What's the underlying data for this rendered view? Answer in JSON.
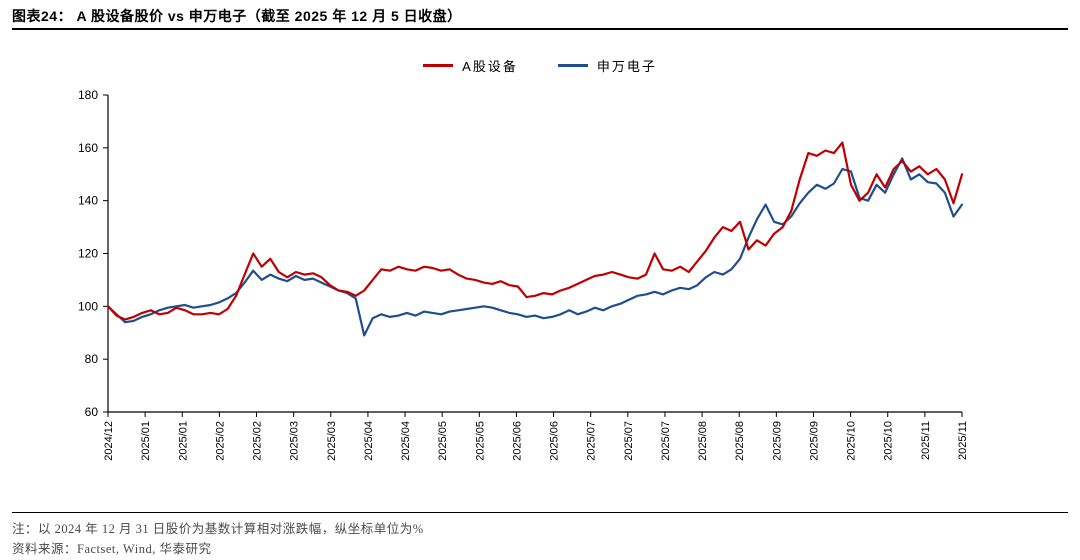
{
  "header": {
    "title": "图表24：  A 股设备股价 vs 申万电子（截至 2025 年 12 月 5 日收盘）"
  },
  "footer": {
    "note": "注：以 2024 年 12 月 31 日股价为基数计算相对涨跌幅，纵坐标单位为%",
    "source": "资料来源：Factset, Wind, 华泰研究"
  },
  "chart_data": {
    "type": "line",
    "title": "A股设备股价 vs 申万电子（截至2025年12月5日收盘）",
    "xlabel": "",
    "ylabel": "",
    "ylim": [
      60,
      180
    ],
    "yticks": [
      60,
      80,
      100,
      120,
      140,
      160,
      180
    ],
    "grid": false,
    "legend_position": "top-center",
    "x_tick_labels": [
      "2024/12",
      "2025/01",
      "2025/01",
      "2025/02",
      "2025/02",
      "2025/03",
      "2025/03",
      "2025/04",
      "2025/04",
      "2025/05",
      "2025/05",
      "2025/06",
      "2025/06",
      "2025/07",
      "2025/07",
      "2025/07",
      "2025/08",
      "2025/08",
      "2025/09",
      "2025/09",
      "2025/10",
      "2025/10",
      "2025/11",
      "2025/11"
    ],
    "series": [
      {
        "name": "A股设备",
        "color": "#C00000",
        "values": [
          100,
          96.5,
          95,
          96,
          97.5,
          98.5,
          97,
          97.5,
          99.5,
          98.5,
          97,
          97,
          97.5,
          97,
          99,
          104,
          112,
          120,
          115,
          118,
          113,
          111,
          113,
          112,
          112.5,
          111,
          108,
          106,
          105.5,
          104,
          106,
          110,
          114,
          113.5,
          115,
          114,
          113.5,
          115,
          114.5,
          113.5,
          114,
          112,
          110.5,
          110,
          109,
          108.5,
          109.5,
          108,
          107.5,
          103.5,
          104,
          105,
          104.5,
          106,
          107,
          108.5,
          110,
          111.5,
          112,
          113,
          112,
          111,
          110.5,
          112,
          120,
          114,
          113.5,
          115,
          113,
          117,
          121,
          126,
          130,
          128.5,
          132,
          121.5,
          125,
          123,
          127.5,
          130,
          136,
          148,
          158,
          157,
          159,
          158,
          162,
          146,
          140,
          143,
          150,
          145,
          152,
          155,
          151,
          153,
          150,
          152,
          148,
          139,
          150
        ]
      },
      {
        "name": "申万电子",
        "color": "#1F4E8F",
        "values": [
          100,
          97,
          94,
          94.5,
          96,
          97,
          98.5,
          99.5,
          100,
          100.5,
          99.5,
          100,
          100.5,
          101.5,
          103,
          105,
          109,
          113.5,
          110,
          112,
          110.5,
          109.5,
          111.5,
          110,
          110.5,
          109,
          107.5,
          106,
          105,
          103,
          89,
          95.5,
          97,
          96,
          96.5,
          97.5,
          96.5,
          98,
          97.5,
          97,
          98,
          98.5,
          99,
          99.5,
          100,
          99.5,
          98.5,
          97.5,
          97,
          96,
          96.5,
          95.5,
          96,
          97,
          98.5,
          97,
          98,
          99.5,
          98.5,
          100,
          101,
          102.5,
          104,
          104.5,
          105.5,
          104.5,
          106,
          107,
          106.5,
          108,
          111,
          113,
          112,
          114,
          118,
          126,
          133,
          138.5,
          132,
          131,
          134,
          139,
          143,
          146,
          144.5,
          146.5,
          152,
          151,
          141,
          140,
          146,
          143,
          150,
          156,
          148,
          150,
          147,
          146.5,
          143,
          134,
          138.5
        ]
      }
    ]
  }
}
